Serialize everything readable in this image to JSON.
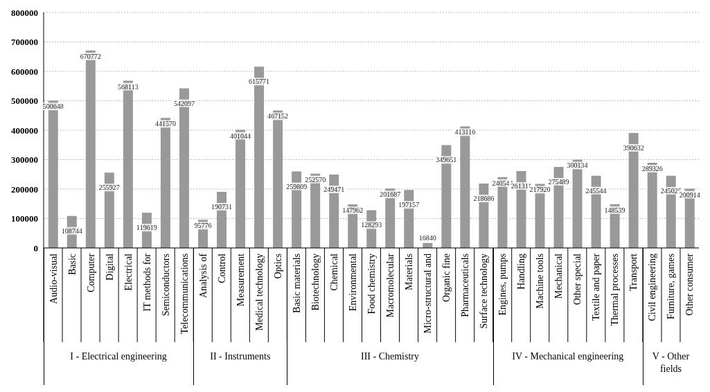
{
  "chart_data": {
    "type": "bar",
    "categories": [
      "Audio-visual",
      "Basic",
      "Computer",
      "Digital",
      "Electrical",
      "IT methods for",
      "Semiconductors",
      "Telecommunications",
      "Analysis of",
      "Control",
      "Measurement",
      "Medical technology",
      "Optics",
      "Basic materials",
      "Biotechnology",
      "Chemical",
      "Environmental",
      "Food chemistry",
      "Macromolecular",
      "Materials",
      "Micro-structural and",
      "Organic fine",
      "Pharmaceuticals",
      "Surface technology",
      "Engines, pumps",
      "Handling",
      "Machine tools",
      "Mechanical",
      "Other special",
      "Textile and paper",
      "Thermal processes",
      "Transport",
      "Civil engineering",
      "Furniture, games",
      "Other consumer"
    ],
    "values": [
      500648,
      108744,
      670772,
      255927,
      568113,
      119619,
      441570,
      542097,
      95776,
      190731,
      401044,
      615771,
      467152,
      259809,
      252570,
      249471,
      147962,
      128293,
      201687,
      197157,
      16840,
      349651,
      413116,
      218686,
      240544,
      261311,
      217920,
      275489,
      300134,
      245544,
      148539,
      390632,
      289326,
      245025,
      200914
    ],
    "color": "#999999",
    "ylim": [
      0,
      800000
    ],
    "yticks": [
      0,
      100000,
      200000,
      300000,
      400000,
      500000,
      600000,
      700000,
      800000
    ],
    "grid": "y",
    "data_labels": true,
    "annotations": [
      "I - Electrical engineering",
      "II - Instruments",
      "III - Chemistry",
      "IV - Mechanical engineering",
      "V - Other fields"
    ]
  }
}
